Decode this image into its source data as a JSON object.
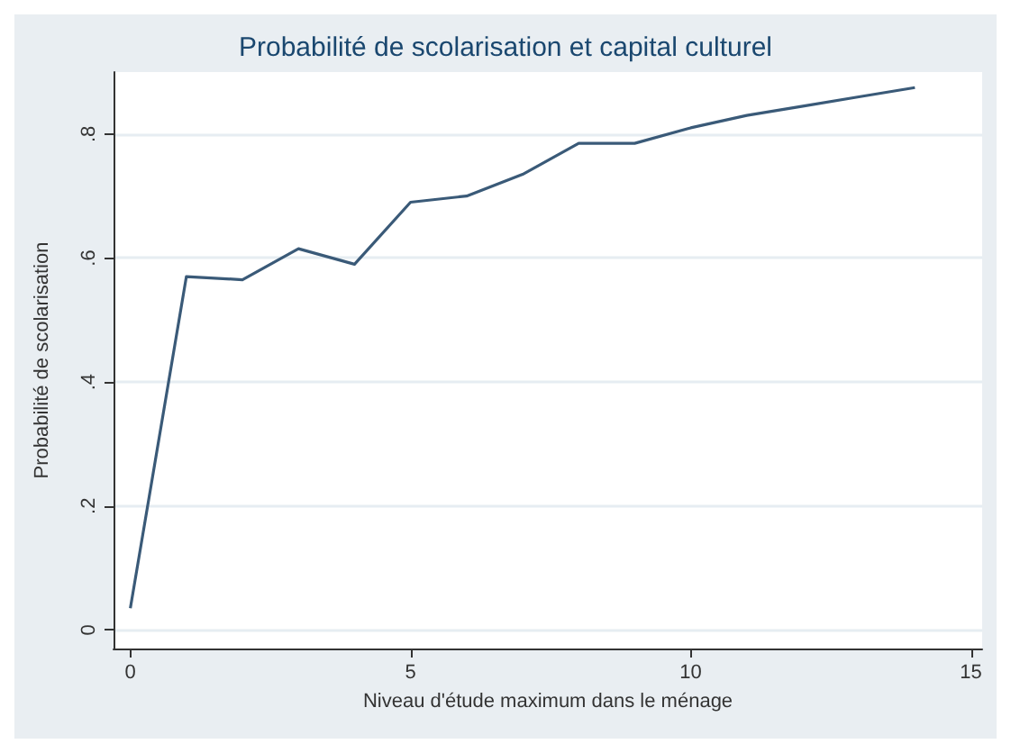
{
  "chart_data": {
    "type": "line",
    "title": "Probabilité de scolarisation et capital culturel",
    "xlabel": "Niveau d'étude maximum dans le ménage",
    "ylabel": "Probabilité de scolarisation",
    "x": [
      0,
      1,
      2,
      3,
      4,
      5,
      6,
      7,
      8,
      9,
      10,
      11,
      12,
      13,
      14
    ],
    "series": [
      {
        "color": "#3a5a78",
        "values": [
          0.035,
          0.57,
          0.565,
          0.615,
          0.59,
          0.69,
          0.7,
          0.735,
          0.785,
          0.785,
          0.81,
          0.83,
          0.845,
          0.86,
          0.875
        ]
      }
    ],
    "xlim": [
      -0.3,
      15.2
    ],
    "xticks": [
      0,
      5,
      10,
      15
    ],
    "ylim": [
      -0.03,
      0.9
    ],
    "yticks": [
      0,
      {
        "value": 0.2,
        "label": ".2"
      },
      {
        "value": 0.4,
        "label": ".4"
      },
      {
        "value": 0.6,
        "label": ".6"
      },
      {
        "value": 0.8,
        "label": ".8"
      }
    ],
    "grid": "y",
    "marker": "none",
    "line_style": "solid"
  }
}
